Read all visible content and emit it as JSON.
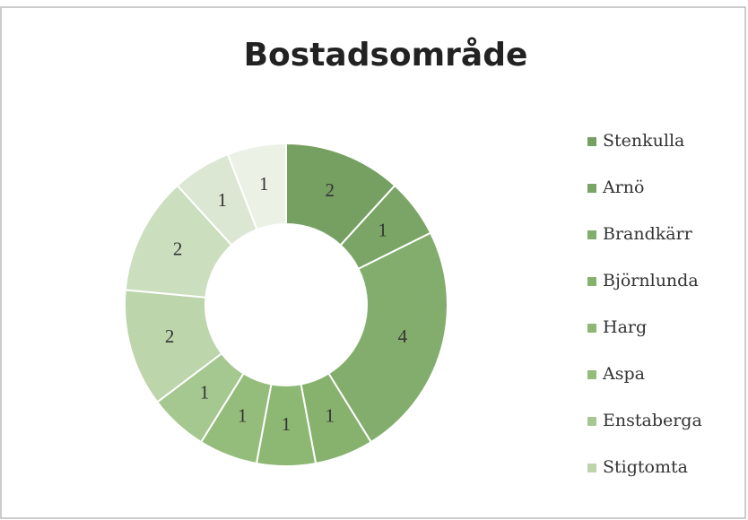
{
  "chart_data": {
    "type": "donut",
    "title": "Bostadsområde",
    "categories": [
      "Stenkulla",
      "Arnö",
      "Brandkärr",
      "Björnlunda",
      "Harg",
      "Aspa",
      "Enstaberga",
      "Stigtomta",
      null,
      null,
      null
    ],
    "values": [
      2,
      1,
      4,
      1,
      1,
      1,
      1,
      2,
      2,
      1,
      1
    ],
    "colors": [
      "#76a062",
      "#7aa566",
      "#82ad6c",
      "#86b26e",
      "#8cb874",
      "#94bd7c",
      "#a5c790",
      "#bcd5ab",
      "#cbdebe",
      "#dbe7d2",
      "#ebf1e5"
    ],
    "legend": "right"
  }
}
